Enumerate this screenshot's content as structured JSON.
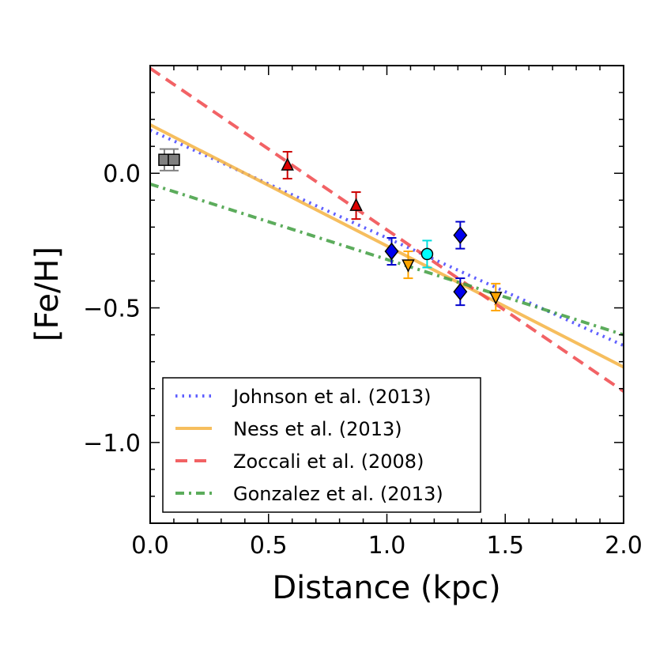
{
  "chart_data": {
    "type": "scatter",
    "xlabel": "Distance (kpc)",
    "ylabel": "[Fe/H]",
    "xlim": [
      0.0,
      2.0
    ],
    "ylim": [
      -1.3,
      0.4
    ],
    "xticks": [
      {
        "value": 0.0,
        "label": "0.0"
      },
      {
        "value": 0.5,
        "label": "0.5"
      },
      {
        "value": 1.0,
        "label": "1.0"
      },
      {
        "value": 1.5,
        "label": "1.5"
      },
      {
        "value": 2.0,
        "label": "2.0"
      }
    ],
    "yticks": [
      {
        "value": 0.0,
        "label": "0.0"
      },
      {
        "value": -0.5,
        "label": "−0.5"
      },
      {
        "value": -1.0,
        "label": "−1.0"
      }
    ],
    "lines": [
      {
        "name": "Johnson et al. (2013)",
        "color": "#4444ff",
        "dash": "dotted",
        "x": [
          0.0,
          2.0
        ],
        "y": [
          0.16,
          -0.64
        ]
      },
      {
        "name": "Ness et al. (2013)",
        "color": "#f5b342",
        "dash": "solid",
        "x": [
          0.0,
          2.0
        ],
        "y": [
          0.18,
          -0.72
        ]
      },
      {
        "name": "Zoccali et al. (2008)",
        "color": "#f0474a",
        "dash": "dashed",
        "x": [
          0.0,
          2.0
        ],
        "y": [
          0.39,
          -0.81
        ]
      },
      {
        "name": "Gonzalez et al. (2013)",
        "color": "#3f9e3f",
        "dash": "dashdot",
        "x": [
          0.0,
          2.0
        ],
        "y": [
          -0.04,
          -0.6
        ]
      }
    ],
    "points": [
      {
        "name": "grey-square-1",
        "marker": "square",
        "fill": "#808080",
        "ecolor": "#808080",
        "x": 0.06,
        "y": 0.05,
        "err": 0.04
      },
      {
        "name": "grey-square-2",
        "marker": "square",
        "fill": "#808080",
        "ecolor": "#808080",
        "x": 0.1,
        "y": 0.05,
        "err": 0.04
      },
      {
        "name": "red-triangle-1",
        "marker": "triangle-up",
        "fill": "#dd0000",
        "ecolor": "#cc0000",
        "x": 0.58,
        "y": 0.03,
        "err": 0.05
      },
      {
        "name": "red-triangle-2",
        "marker": "triangle-up",
        "fill": "#dd0000",
        "ecolor": "#cc0000",
        "x": 0.87,
        "y": -0.12,
        "err": 0.05
      },
      {
        "name": "blue-diamond-1",
        "marker": "diamond",
        "fill": "#0000ee",
        "ecolor": "#0000cc",
        "x": 1.02,
        "y": -0.29,
        "err": 0.05
      },
      {
        "name": "orange-triangle-1",
        "marker": "triangle-down",
        "fill": "#ffa500",
        "ecolor": "#ffa500",
        "x": 1.09,
        "y": -0.34,
        "err": 0.05
      },
      {
        "name": "cyan-circle",
        "marker": "circle",
        "fill": "#00ffff",
        "ecolor": "#00dddd",
        "x": 1.17,
        "y": -0.3,
        "err": 0.05
      },
      {
        "name": "blue-diamond-2",
        "marker": "diamond",
        "fill": "#0000ee",
        "ecolor": "#0000cc",
        "x": 1.31,
        "y": -0.23,
        "err": 0.05
      },
      {
        "name": "blue-diamond-3",
        "marker": "diamond",
        "fill": "#0000ee",
        "ecolor": "#0000cc",
        "x": 1.31,
        "y": -0.44,
        "err": 0.05
      },
      {
        "name": "orange-triangle-2",
        "marker": "triangle-down",
        "fill": "#ffa500",
        "ecolor": "#ffa500",
        "x": 1.46,
        "y": -0.46,
        "err": 0.05
      }
    ],
    "legend": {
      "placement": "lower-left",
      "entries": [
        "Johnson et al. (2013)",
        "Ness et al. (2013)",
        "Zoccali et al. (2008)",
        "Gonzalez et al. (2013)"
      ]
    }
  }
}
